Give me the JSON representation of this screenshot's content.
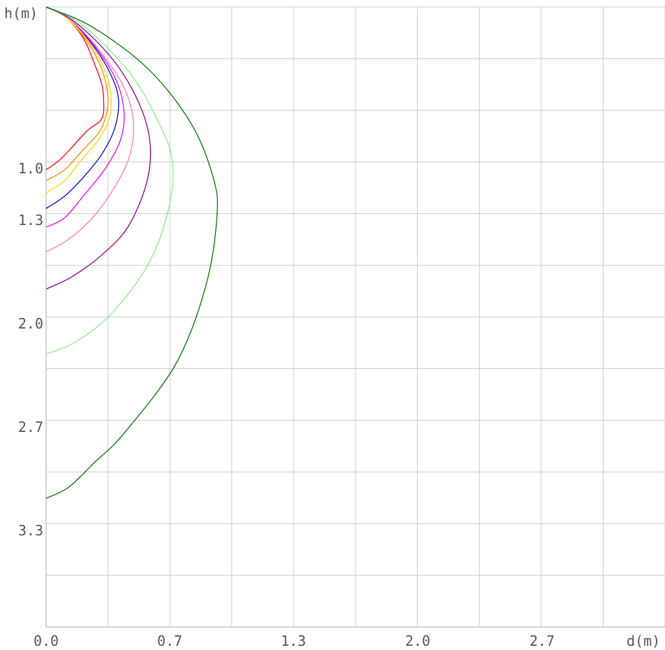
{
  "chart_data": {
    "type": "line",
    "title": "",
    "xlabel": "d(m)",
    "ylabel": "h(m)",
    "xlim": [
      0,
      3.333
    ],
    "ylim": [
      0,
      4
    ],
    "y_inverted": true,
    "grid": true,
    "legend": "none",
    "x_tick_labels": [
      "0.0",
      "0.7",
      "1.3",
      "2.0",
      "2.7"
    ],
    "y_tick_labels": [
      "1.0",
      "1.3",
      "2.0",
      "2.7",
      "3.3"
    ],
    "series": [
      {
        "color": "#ff0000",
        "points": [
          [
            0,
            0
          ],
          [
            0.1,
            0.06
          ],
          [
            0.2,
            0.2
          ],
          [
            0.265,
            0.38
          ],
          [
            0.3,
            0.5
          ],
          [
            0.31,
            0.6
          ],
          [
            0.3,
            0.72
          ],
          [
            0.22,
            0.8
          ],
          [
            0.12,
            0.93
          ],
          [
            0.06,
            1.0
          ],
          [
            0,
            1.05
          ]
        ]
      },
      {
        "color": "#ff8800",
        "points": [
          [
            0,
            0
          ],
          [
            0.1,
            0.06
          ],
          [
            0.22,
            0.22
          ],
          [
            0.3,
            0.4
          ],
          [
            0.33,
            0.55
          ],
          [
            0.33,
            0.66
          ],
          [
            0.29,
            0.8
          ],
          [
            0.2,
            0.92
          ],
          [
            0.1,
            1.05
          ],
          [
            0,
            1.12
          ]
        ]
      },
      {
        "color": "#ffd700",
        "points": [
          [
            0,
            0
          ],
          [
            0.1,
            0.06
          ],
          [
            0.24,
            0.24
          ],
          [
            0.32,
            0.42
          ],
          [
            0.35,
            0.58
          ],
          [
            0.34,
            0.72
          ],
          [
            0.28,
            0.86
          ],
          [
            0.18,
            1.0
          ],
          [
            0.1,
            1.12
          ],
          [
            0,
            1.2
          ]
        ]
      },
      {
        "color": "#0000dd",
        "points": [
          [
            0,
            0
          ],
          [
            0.12,
            0.07
          ],
          [
            0.26,
            0.26
          ],
          [
            0.35,
            0.44
          ],
          [
            0.39,
            0.6
          ],
          [
            0.37,
            0.78
          ],
          [
            0.3,
            0.95
          ],
          [
            0.2,
            1.1
          ],
          [
            0.1,
            1.22
          ],
          [
            0,
            1.3
          ]
        ]
      },
      {
        "color": "#ee00ee",
        "points": [
          [
            0,
            0
          ],
          [
            0.13,
            0.08
          ],
          [
            0.28,
            0.28
          ],
          [
            0.38,
            0.48
          ],
          [
            0.42,
            0.68
          ],
          [
            0.4,
            0.86
          ],
          [
            0.32,
            1.04
          ],
          [
            0.2,
            1.22
          ],
          [
            0.1,
            1.36
          ],
          [
            0,
            1.42
          ]
        ]
      },
      {
        "color": "#ff77bb",
        "points": [
          [
            0,
            0
          ],
          [
            0.14,
            0.09
          ],
          [
            0.3,
            0.3
          ],
          [
            0.42,
            0.52
          ],
          [
            0.47,
            0.74
          ],
          [
            0.45,
            0.96
          ],
          [
            0.37,
            1.16
          ],
          [
            0.25,
            1.36
          ],
          [
            0.12,
            1.5
          ],
          [
            0,
            1.58
          ]
        ]
      },
      {
        "color": "#880088",
        "points": [
          [
            0,
            0
          ],
          [
            0.16,
            0.1
          ],
          [
            0.36,
            0.34
          ],
          [
            0.5,
            0.62
          ],
          [
            0.56,
            0.88
          ],
          [
            0.54,
            1.14
          ],
          [
            0.44,
            1.42
          ],
          [
            0.3,
            1.6
          ],
          [
            0.14,
            1.74
          ],
          [
            0,
            1.82
          ]
        ]
      },
      {
        "color": "#88ee88",
        "points": [
          [
            0,
            0
          ],
          [
            0.2,
            0.12
          ],
          [
            0.46,
            0.44
          ],
          [
            0.62,
            0.78
          ],
          [
            0.68,
            1.0
          ],
          [
            0.66,
            1.3
          ],
          [
            0.55,
            1.66
          ],
          [
            0.35,
            1.98
          ],
          [
            0.16,
            2.16
          ],
          [
            0,
            2.24
          ]
        ]
      },
      {
        "color": "#007700",
        "points": [
          [
            0,
            0
          ],
          [
            0.25,
            0.13
          ],
          [
            0.55,
            0.4
          ],
          [
            0.78,
            0.75
          ],
          [
            0.9,
            1.1
          ],
          [
            0.92,
            1.35
          ],
          [
            0.86,
            1.8
          ],
          [
            0.7,
            2.3
          ],
          [
            0.42,
            2.75
          ],
          [
            0.26,
            2.94
          ],
          [
            0.12,
            3.1
          ],
          [
            0,
            3.17
          ]
        ]
      }
    ]
  }
}
